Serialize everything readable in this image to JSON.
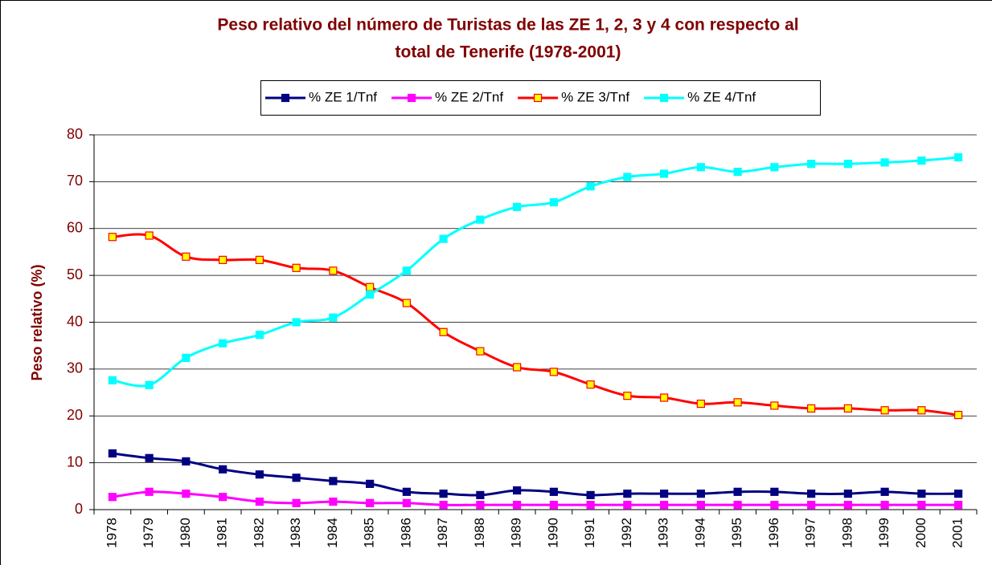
{
  "chart_data": {
    "type": "line",
    "title": "Peso relativo del número de Turistas de las ZE 1, 2, 3 y 4 con respecto al",
    "subtitle": "total de Tenerife (1978-2001)",
    "y_label": "Peso relativo (%)",
    "categories": [
      "1978",
      "1979",
      "1980",
      "1981",
      "1982",
      "1983",
      "1984",
      "1985",
      "1986",
      "1987",
      "1988",
      "1989",
      "1990",
      "1991",
      "1992",
      "1993",
      "1994",
      "1995",
      "1996",
      "1997",
      "1998",
      "1999",
      "2000",
      "2001"
    ],
    "series": [
      {
        "name": "% ZE 1/Tnf",
        "color": "#000080",
        "marker_fill": "#000080",
        "values": [
          12,
          11,
          10.3,
          8.6,
          7.5,
          6.8,
          6.1,
          5.5,
          3.8,
          3.4,
          3.1,
          4.1,
          3.8,
          3.1,
          3.4,
          3.4,
          3.4,
          3.8,
          3.8,
          3.4,
          3.4,
          3.8,
          3.4,
          3.4
        ]
      },
      {
        "name": "% ZE 2/Tnf",
        "color": "#ff00ff",
        "marker_fill": "#ff00ff",
        "values": [
          2.7,
          3.8,
          3.4,
          2.7,
          1.7,
          1.4,
          1.7,
          1.4,
          1.4,
          1,
          1,
          1,
          1,
          1,
          1,
          1,
          1,
          1,
          1,
          1,
          1,
          1,
          1,
          1
        ]
      },
      {
        "name": "% ZE 3/Tnf",
        "color": "#ff0000",
        "marker_fill": "#ffff00",
        "values": [
          58.2,
          58.5,
          54,
          53.3,
          53.3,
          51.6,
          51,
          47.5,
          44.1,
          37.9,
          33.8,
          30.4,
          29.4,
          26.7,
          24.3,
          23.9,
          22.6,
          22.9,
          22.2,
          21.6,
          21.6,
          21.2,
          21.2,
          20.2
        ]
      },
      {
        "name": "% ZE 4/Tnf",
        "color": "#00ffff",
        "marker_fill": "#00ffff",
        "values": [
          27.6,
          26.6,
          32.4,
          35.5,
          37.3,
          40,
          41,
          45.9,
          51,
          57.8,
          61.9,
          64.6,
          65.6,
          69,
          71,
          71.7,
          73.1,
          72.1,
          73.1,
          73.8,
          73.8,
          74.1,
          74.5,
          75.2
        ]
      }
    ],
    "ylim": [
      0,
      80
    ],
    "yticks": [
      0,
      10,
      20,
      30,
      40,
      50,
      60,
      70,
      80
    ],
    "grid": true
  }
}
